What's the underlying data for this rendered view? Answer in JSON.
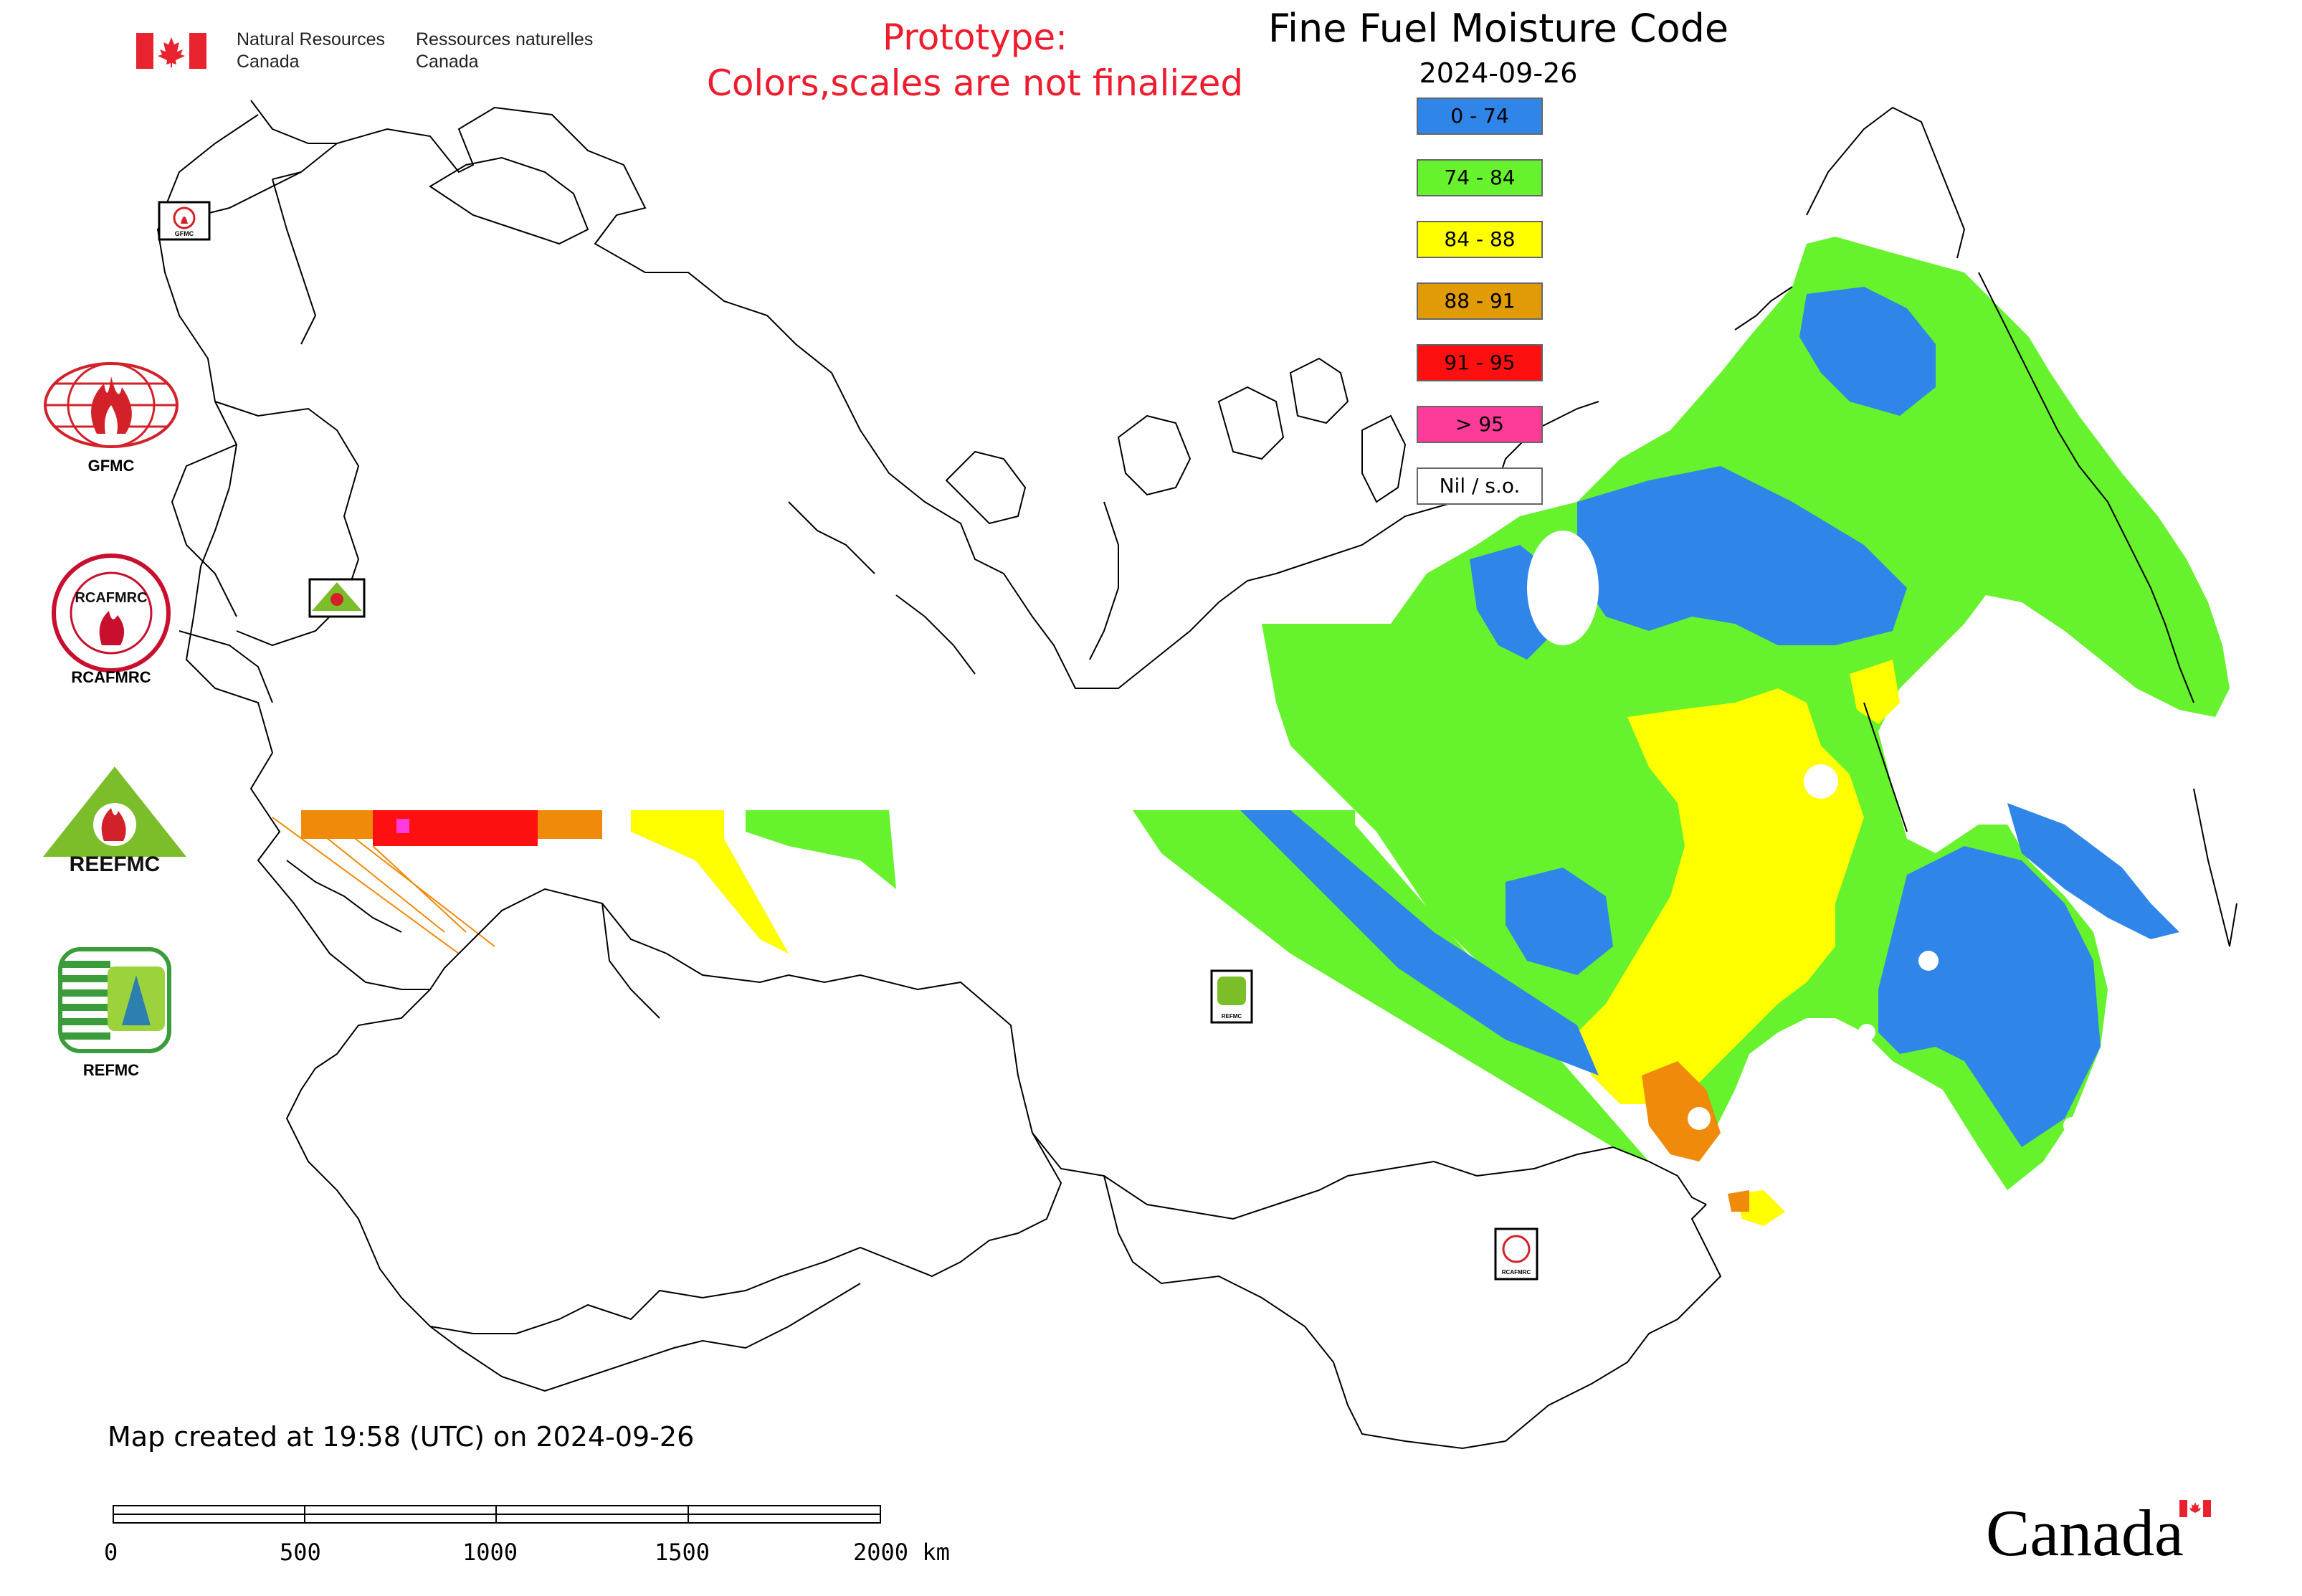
{
  "header": {
    "org_en_line1": "Natural Resources",
    "org_en_line2": "Canada",
    "org_fr_line1": "Ressources naturelles",
    "org_fr_line2": "Canada",
    "prototype_line1": "Prototype:",
    "prototype_line2": "Colors,scales are not finalized",
    "title": "Fine Fuel Moisture Code",
    "date": "2024-09-26"
  },
  "legend": {
    "items": [
      {
        "label": "0 - 74",
        "color": "#2f86e8"
      },
      {
        "label": "74 - 84",
        "color": "#66f22c"
      },
      {
        "label": "84 - 88",
        "color": "#ffff00"
      },
      {
        "label": "88 - 91",
        "color": "#e09b06"
      },
      {
        "label": "91 - 95",
        "color": "#ff1010"
      },
      {
        "label": "> 95",
        "color": "#ff3b9a"
      },
      {
        "label": "Nil / s.o.",
        "color": "#ffffff"
      }
    ]
  },
  "logos": [
    {
      "label": "GFMC",
      "icon": "gfmc-logo-icon"
    },
    {
      "label": "RCAFMRC",
      "icon": "rcafmrc-logo-icon"
    },
    {
      "label": "",
      "icon": "reefmc-logo-icon",
      "text": "REEFMC"
    },
    {
      "label": "REFMC",
      "icon": "refmc-logo-icon"
    }
  ],
  "map_markers": [
    {
      "label": "GFMC",
      "icon": "gfmc-marker-icon"
    },
    {
      "label": "REEFMC",
      "icon": "reefmc-marker-icon"
    },
    {
      "label": "REFMC",
      "icon": "refmc-marker-icon"
    },
    {
      "label": "RCAFMRC",
      "icon": "rcafmrc-marker-icon"
    }
  ],
  "footer": {
    "created": "Map created at 19:58 (UTC) on 2024-09-26",
    "scale_ticks": [
      "0",
      "500",
      "1000",
      "1500",
      "2000 km"
    ],
    "wordmark": "Canada"
  }
}
